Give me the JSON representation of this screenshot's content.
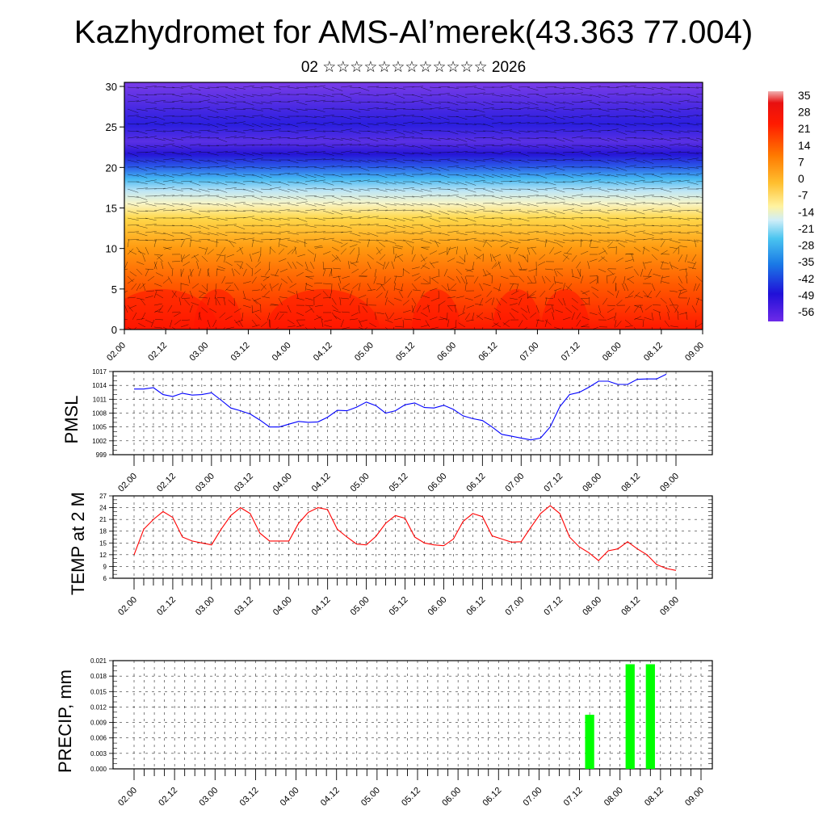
{
  "title": "Kazhydromet for AMS-Al’merek(43.363 77.004)",
  "subtitle": "02 ☆☆☆☆☆☆☆☆☆☆☆☆ 2026",
  "time_labels": [
    "02.00",
    "02.12",
    "03.00",
    "03.12",
    "04.00",
    "04.12",
    "05.00",
    "05.12",
    "06.00",
    "06.12",
    "07.00",
    "07.12",
    "08.00",
    "08.12",
    "09.00"
  ],
  "chart_data": [
    {
      "type": "heatmap",
      "title": "Kazhydromet for AMS-Al’merek(43.363 77.004)",
      "y_ticks": [
        "0",
        "5",
        "10",
        "15",
        "20",
        "25",
        "30"
      ],
      "ylim": [
        0,
        30.5
      ],
      "colorbar": {
        "labels": [
          "35",
          "28",
          "21",
          "14",
          "7",
          "0",
          "-7",
          "-14",
          "-21",
          "-28",
          "-35",
          "-42",
          "-49",
          "-56"
        ],
        "range": [
          -60,
          38
        ]
      },
      "overlay": "wind barbs",
      "notes": "temperature cross-section: warm (red) near surface, cold (blue/purple) above about 20"
    },
    {
      "type": "line",
      "ylabel": "PMSL",
      "color": "#0000ff",
      "ylim": [
        999,
        1017
      ],
      "y_ticks": [
        "1017",
        "1014",
        "1011",
        "1008",
        "1005",
        "1002",
        "999"
      ],
      "x_step_hours": 3,
      "values": [
        1013.2,
        1013.2,
        1013.5,
        1012.0,
        1011.6,
        1012.3,
        1011.9,
        1012.0,
        1012.4,
        1010.8,
        1009.1,
        1008.5,
        1007.8,
        1006.5,
        1005.0,
        1005.0,
        1005.6,
        1006.2,
        1006.0,
        1006.1,
        1007.1,
        1008.6,
        1008.5,
        1009.3,
        1010.4,
        1009.6,
        1008.0,
        1008.5,
        1009.8,
        1010.2,
        1009.2,
        1009.1,
        1009.7,
        1008.8,
        1007.4,
        1006.8,
        1006.4,
        1005.0,
        1003.4,
        1003.0,
        1002.6,
        1002.2,
        1002.6,
        1005.0,
        1009.4,
        1012.0,
        1012.5,
        1013.6,
        1014.9,
        1014.9,
        1014.2,
        1014.2,
        1015.3,
        1015.4,
        1015.4,
        1016.4
      ]
    },
    {
      "type": "line",
      "ylabel": "TEMP at 2 M",
      "color": "#ff0000",
      "ylim": [
        6,
        27
      ],
      "y_ticks": [
        "27",
        "24",
        "21",
        "18",
        "15",
        "12",
        "9",
        "6"
      ],
      "x_step_hours": 3,
      "values": [
        12.0,
        18.5,
        21.0,
        23.0,
        21.5,
        16.5,
        15.5,
        15.0,
        14.5,
        18.5,
        22.0,
        24.0,
        22.5,
        17.5,
        15.5,
        15.5,
        15.5,
        20.0,
        22.8,
        24.0,
        23.5,
        18.5,
        16.5,
        14.7,
        14.5,
        16.7,
        20.0,
        22.0,
        21.3,
        16.5,
        15.0,
        14.5,
        14.3,
        16.0,
        20.5,
        22.5,
        21.7,
        16.8,
        16.0,
        15.2,
        15.3,
        19.0,
        22.5,
        24.5,
        22.5,
        16.5,
        14.0,
        12.5,
        10.5,
        13.0,
        13.5,
        15.3,
        13.5,
        12.0,
        9.5,
        8.5,
        8.0
      ]
    },
    {
      "type": "bar",
      "ylabel": "PRECIP, mm",
      "color": "#00ff00",
      "ylim": [
        0,
        0.021
      ],
      "y_ticks": [
        "0.021",
        "0.018",
        "0.015",
        "0.012",
        "0.009",
        "0.006",
        "0.003",
        "0.000"
      ],
      "x_step_hours": 3,
      "bars": [
        {
          "time": "07.15",
          "value": 0.0105
        },
        {
          "time": "08.03",
          "value": 0.0203
        },
        {
          "time": "08.09",
          "value": 0.0203
        }
      ]
    }
  ],
  "colors": {
    "pmsl": "#0000ff",
    "temp": "#ff0000",
    "precip": "#00ff00"
  }
}
